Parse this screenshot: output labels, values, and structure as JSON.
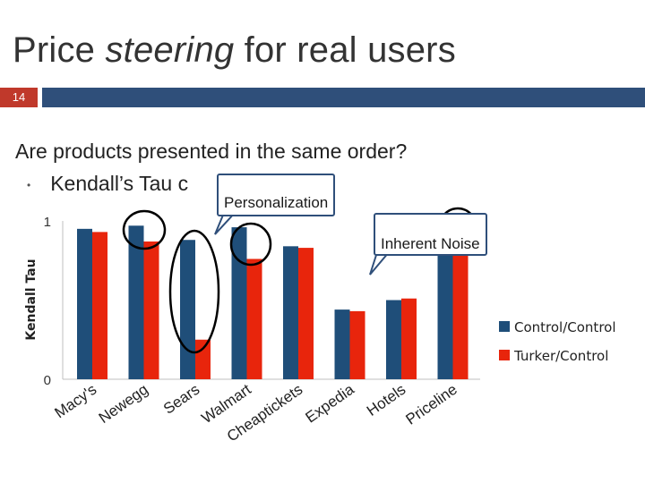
{
  "slide": {
    "title_part1": "Price ",
    "title_emphasis": "steering",
    "title_part2": " for real users",
    "number": "14",
    "question": "Are products presented in the same order?",
    "bullet": "Kendall’s Tau c"
  },
  "callouts": {
    "personalization": "Personalization",
    "noise": "Inherent Noise"
  },
  "colors": {
    "accent": "#c0392b",
    "bar_header": "#2f4f7a",
    "control_control": "#1f4e79",
    "turker_control": "#e8250c"
  },
  "chart_data": {
    "type": "bar",
    "categories": [
      "Macy's",
      "Newegg",
      "Sears",
      "Walmart",
      "Cheaptickets",
      "Expedia",
      "Hotels",
      "Priceline"
    ],
    "series": [
      {
        "name": "Control/Control",
        "values": [
          0.95,
          0.97,
          0.88,
          0.96,
          0.84,
          0.44,
          0.5,
          0.93
        ]
      },
      {
        "name": "Turker/Control",
        "values": [
          0.93,
          0.87,
          0.25,
          0.76,
          0.83,
          0.43,
          0.51,
          0.78
        ]
      }
    ],
    "ylabel": "Kendall Tau",
    "ylim": [
      0,
      1
    ],
    "yticks": [
      "0",
      "1"
    ],
    "legend": "right",
    "grid": false
  }
}
